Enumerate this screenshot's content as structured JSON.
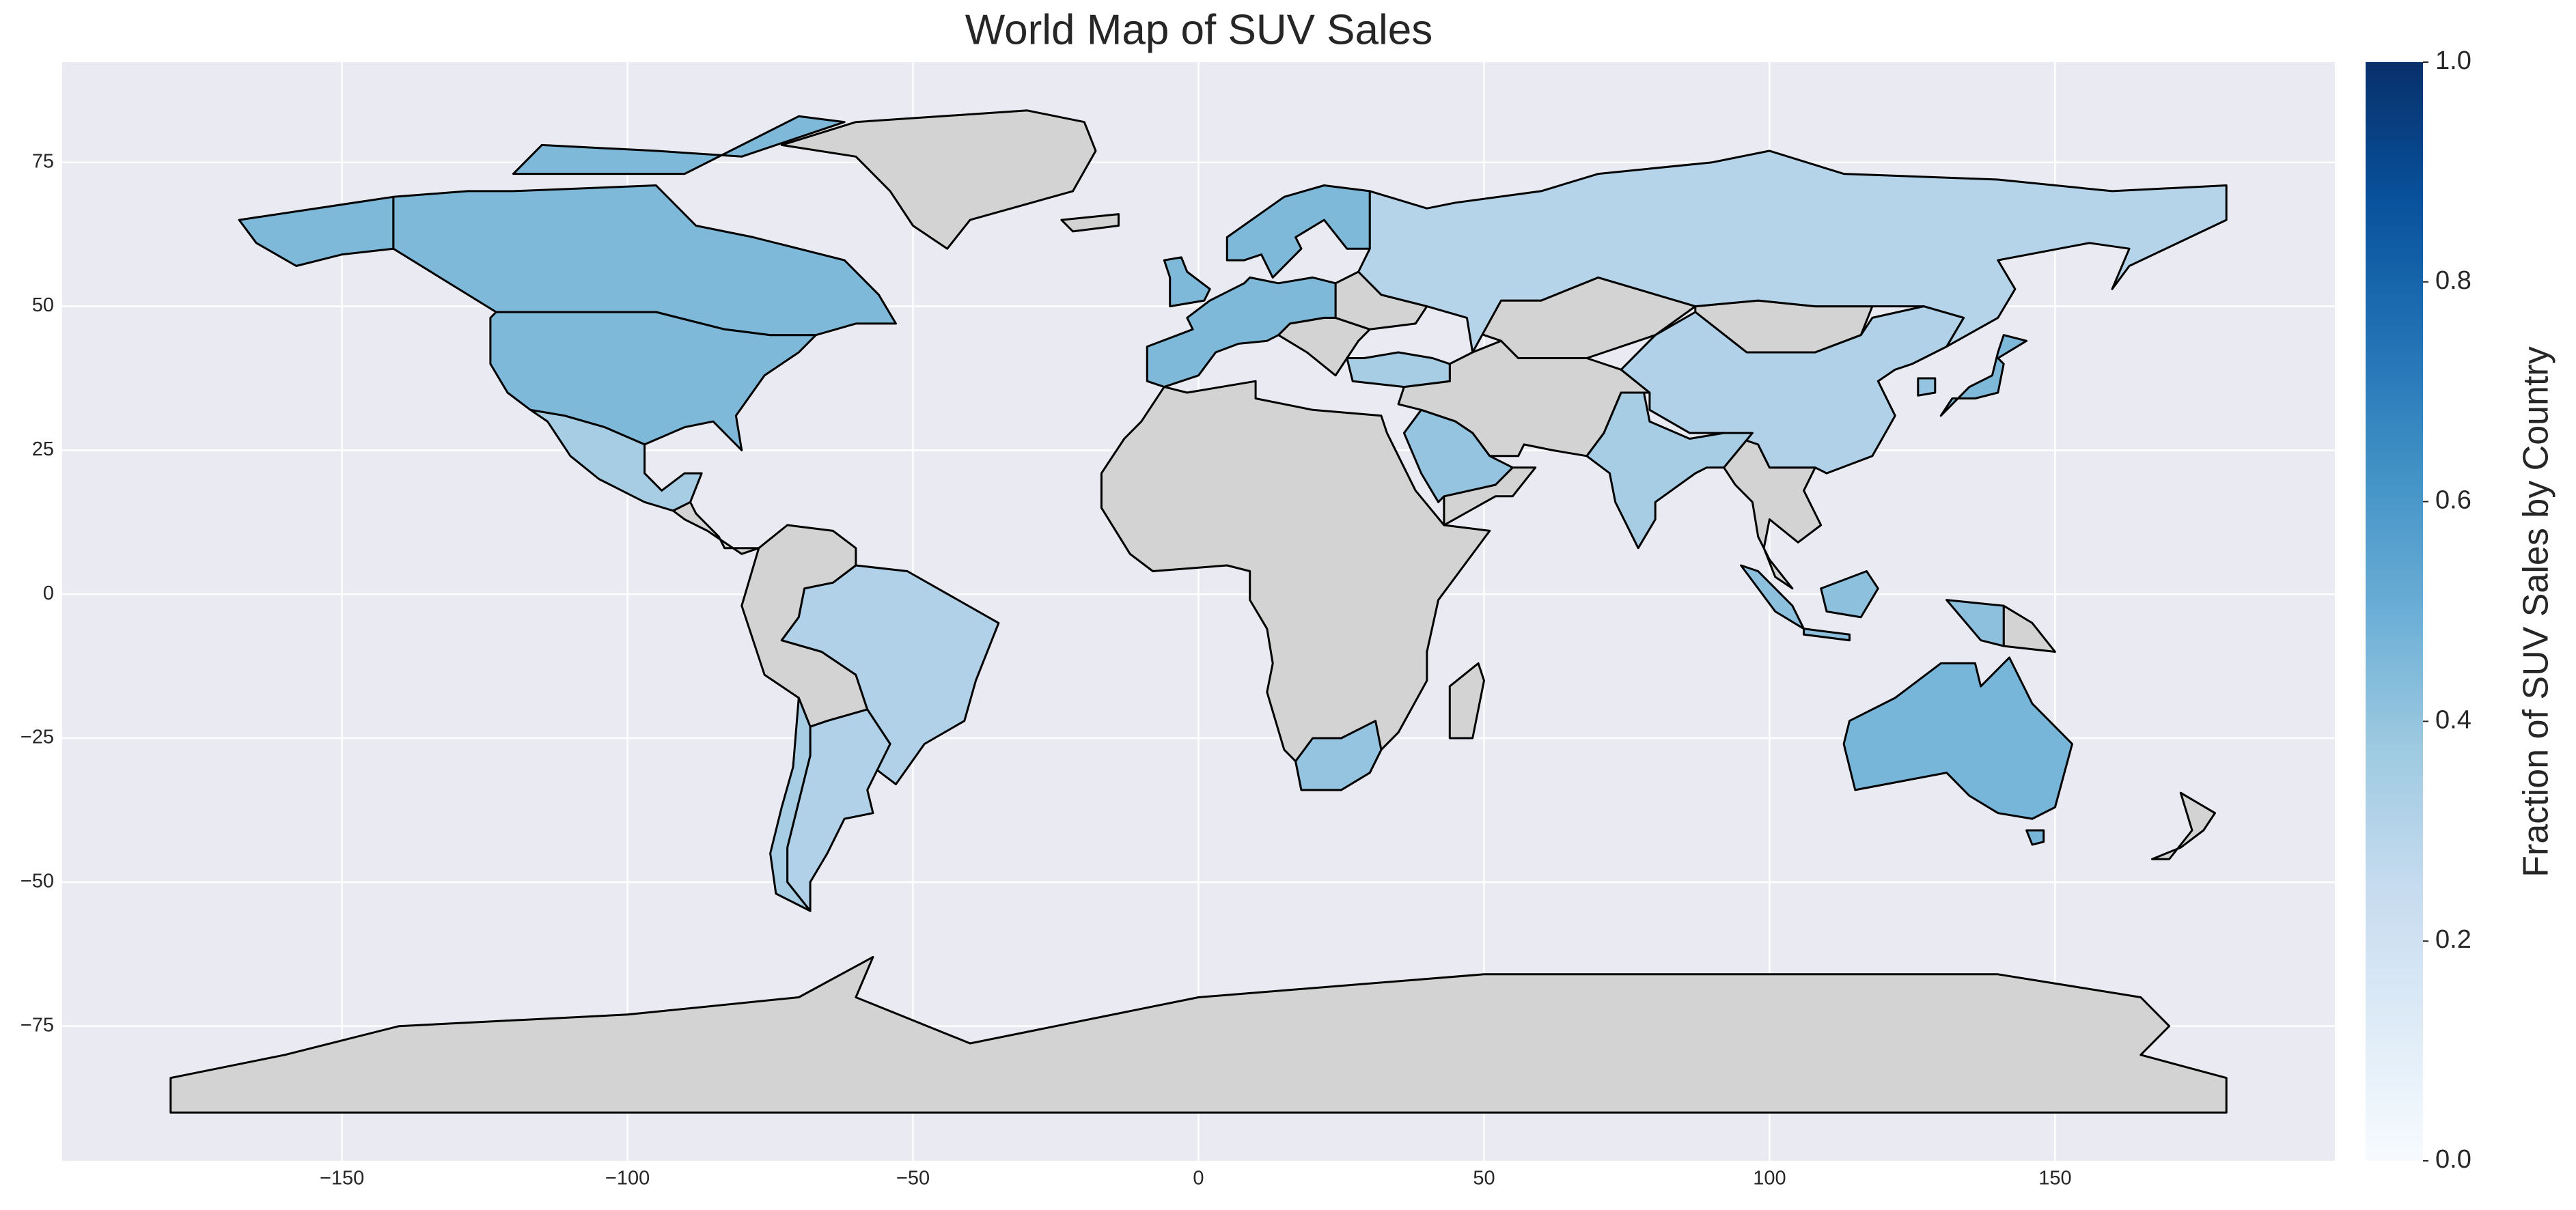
{
  "chart_data": {
    "type": "choropleth",
    "title": "World Map of SUV Sales",
    "colorbar_label": "Fraction of SUV Sales by Country",
    "values": [
      0.45,
      0.45,
      0.35,
      0.32,
      0.32,
      0.35,
      0.45,
      0.45,
      0.45,
      0.3,
      0.32,
      0.35,
      0.4,
      0.35,
      0.45,
      0.4,
      0.42,
      0.47,
      0.4
    ],
    "missing_color": "#d3d3d3",
    "colormap": [
      "#f7fbff",
      "#deebf7",
      "#c6dbef",
      "#9ecae1",
      "#6baed6",
      "#4292c6",
      "#2171b5",
      "#08519c",
      "#08306b"
    ],
    "clim": [
      0,
      1
    ],
    "cticks": [
      {
        "value": 0,
        "label": "0.0"
      },
      0.2,
      0.4,
      0.6,
      0.8,
      {
        "value": 1,
        "label": "1.0"
      }
    ],
    "xlim": [
      -199,
      199
    ],
    "ylim": [
      -98.4,
      92.4
    ],
    "xticks": [
      {
        "value": -150,
        "label": "−150"
      },
      {
        "value": -100,
        "label": "−100"
      },
      {
        "value": -50,
        "label": "−50"
      },
      0,
      50,
      100,
      150
    ],
    "yticks": [
      {
        "value": -75,
        "label": "−75"
      },
      {
        "value": -50,
        "label": "−50"
      },
      {
        "value": -25,
        "label": "−25"
      },
      0,
      25,
      50,
      75
    ],
    "grid": true
  }
}
